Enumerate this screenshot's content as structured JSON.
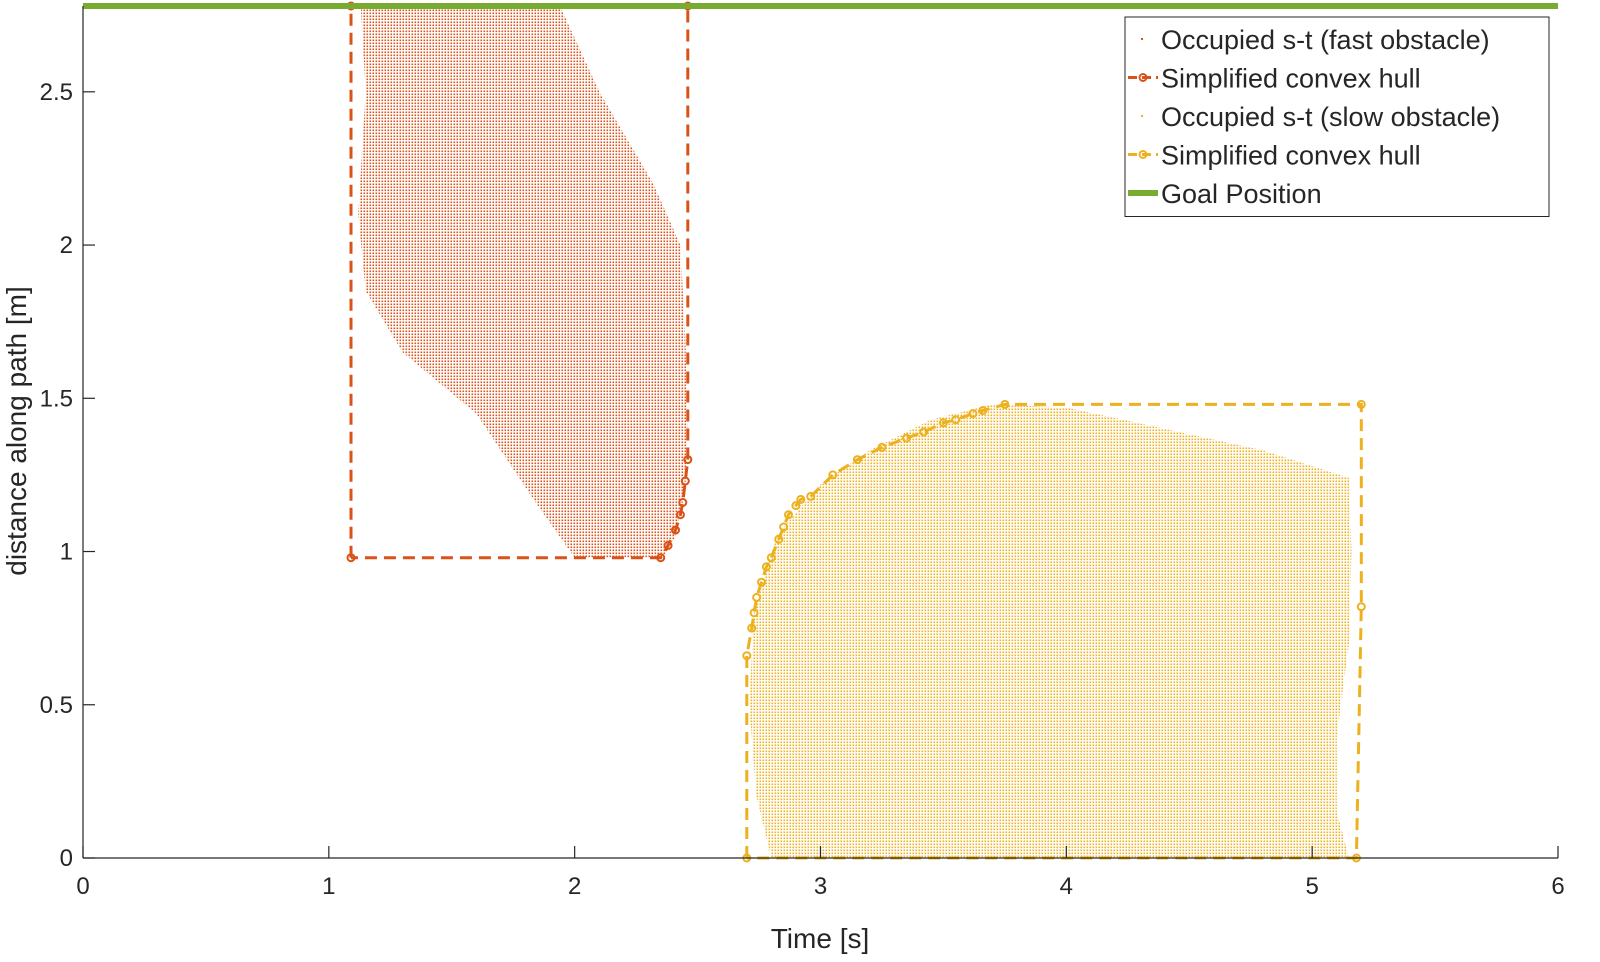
{
  "chart_data": {
    "type": "scatter",
    "title": "",
    "xlabel": "Time [s]",
    "ylabel": "distance along path [m]",
    "xlim": [
      0,
      6
    ],
    "ylim": [
      0,
      2.78
    ],
    "xticks": [
      0,
      1,
      2,
      3,
      4,
      5,
      6
    ],
    "yticks": [
      0,
      0.5,
      1,
      1.5,
      2,
      2.5
    ],
    "ytick_labels": [
      "0",
      "0.5",
      "1",
      "1.5",
      "2",
      "2.5"
    ],
    "grid": false,
    "legend_position": "top-right",
    "colors": {
      "fast": "#D95319",
      "slow": "#EDB120",
      "goal": "#77AC30",
      "axis": "#262626"
    },
    "series": [
      {
        "name": "Occupied s-t (fast obstacle)",
        "kind": "filled-points",
        "color": "#D95319",
        "outline": [
          [
            1.09,
            2.78
          ],
          [
            1.94,
            2.78
          ],
          [
            2.1,
            2.5
          ],
          [
            2.32,
            2.2
          ],
          [
            2.43,
            2.0
          ],
          [
            2.45,
            1.7
          ],
          [
            2.46,
            1.4
          ],
          [
            2.45,
            1.2
          ],
          [
            2.41,
            1.05
          ],
          [
            2.36,
            0.98
          ],
          [
            2.0,
            0.98
          ],
          [
            1.85,
            1.15
          ],
          [
            1.6,
            1.45
          ],
          [
            1.3,
            1.65
          ],
          [
            1.15,
            1.85
          ],
          [
            1.12,
            2.1
          ],
          [
            1.15,
            2.5
          ],
          [
            1.13,
            2.78
          ]
        ]
      },
      {
        "name": "Simplified convex hull",
        "kind": "hull",
        "color": "#D95319",
        "hull": [
          [
            1.09,
            0.98
          ],
          [
            1.09,
            2.78
          ],
          [
            2.46,
            2.78
          ],
          [
            2.46,
            1.3
          ],
          [
            2.45,
            1.23
          ],
          [
            2.44,
            1.16
          ],
          [
            2.43,
            1.12
          ],
          [
            2.41,
            1.07
          ],
          [
            2.38,
            1.02
          ],
          [
            2.35,
            0.98
          ],
          [
            1.09,
            0.98
          ]
        ],
        "markers": [
          [
            1.09,
            0.98
          ],
          [
            1.09,
            2.78
          ],
          [
            2.46,
            2.78
          ],
          [
            2.46,
            1.3
          ],
          [
            2.45,
            1.23
          ],
          [
            2.44,
            1.16
          ],
          [
            2.43,
            1.12
          ],
          [
            2.41,
            1.07
          ],
          [
            2.38,
            1.02
          ],
          [
            2.35,
            0.98
          ]
        ]
      },
      {
        "name": "Occupied s-t (slow obstacle)",
        "kind": "filled-points",
        "color": "#EDB120",
        "outline": [
          [
            2.8,
            0.0
          ],
          [
            2.74,
            0.2
          ],
          [
            2.71,
            0.5
          ],
          [
            2.73,
            0.8
          ],
          [
            2.82,
            1.05
          ],
          [
            3.0,
            1.22
          ],
          [
            3.2,
            1.33
          ],
          [
            3.45,
            1.43
          ],
          [
            3.7,
            1.48
          ],
          [
            4.0,
            1.47
          ],
          [
            4.4,
            1.4
          ],
          [
            4.8,
            1.33
          ],
          [
            5.15,
            1.24
          ],
          [
            5.16,
            1.0
          ],
          [
            5.15,
            0.7
          ],
          [
            5.1,
            0.4
          ],
          [
            5.1,
            0.15
          ],
          [
            5.15,
            0.0
          ]
        ]
      },
      {
        "name": "Simplified convex hull",
        "kind": "hull",
        "color": "#EDB120",
        "hull": [
          [
            2.7,
            0.0
          ],
          [
            2.7,
            0.66
          ],
          [
            2.72,
            0.75
          ],
          [
            2.73,
            0.8
          ],
          [
            2.74,
            0.85
          ],
          [
            2.76,
            0.9
          ],
          [
            2.78,
            0.95
          ],
          [
            2.8,
            0.98
          ],
          [
            2.83,
            1.04
          ],
          [
            2.85,
            1.08
          ],
          [
            2.87,
            1.12
          ],
          [
            2.9,
            1.15
          ],
          [
            2.92,
            1.17
          ],
          [
            2.96,
            1.18
          ],
          [
            3.05,
            1.25
          ],
          [
            3.15,
            1.3
          ],
          [
            3.25,
            1.34
          ],
          [
            3.35,
            1.37
          ],
          [
            3.42,
            1.39
          ],
          [
            3.5,
            1.42
          ],
          [
            3.55,
            1.43
          ],
          [
            3.62,
            1.45
          ],
          [
            3.66,
            1.46
          ],
          [
            3.75,
            1.48
          ],
          [
            5.2,
            1.48
          ],
          [
            5.2,
            0.82
          ],
          [
            5.18,
            0.0
          ],
          [
            2.7,
            0.0
          ]
        ],
        "markers": [
          [
            2.7,
            0.0
          ],
          [
            2.7,
            0.66
          ],
          [
            2.72,
            0.75
          ],
          [
            2.73,
            0.8
          ],
          [
            2.74,
            0.85
          ],
          [
            2.76,
            0.9
          ],
          [
            2.78,
            0.95
          ],
          [
            2.8,
            0.98
          ],
          [
            2.83,
            1.04
          ],
          [
            2.85,
            1.08
          ],
          [
            2.87,
            1.12
          ],
          [
            2.9,
            1.15
          ],
          [
            2.92,
            1.17
          ],
          [
            2.96,
            1.18
          ],
          [
            3.05,
            1.25
          ],
          [
            3.15,
            1.3
          ],
          [
            3.25,
            1.34
          ],
          [
            3.35,
            1.37
          ],
          [
            3.42,
            1.39
          ],
          [
            3.5,
            1.42
          ],
          [
            3.55,
            1.43
          ],
          [
            3.62,
            1.45
          ],
          [
            3.66,
            1.46
          ],
          [
            3.75,
            1.48
          ],
          [
            5.2,
            1.48
          ],
          [
            5.2,
            0.82
          ],
          [
            5.18,
            0.0
          ]
        ]
      },
      {
        "name": "Goal Position",
        "kind": "hline",
        "color": "#77AC30",
        "y": 2.78
      }
    ]
  }
}
